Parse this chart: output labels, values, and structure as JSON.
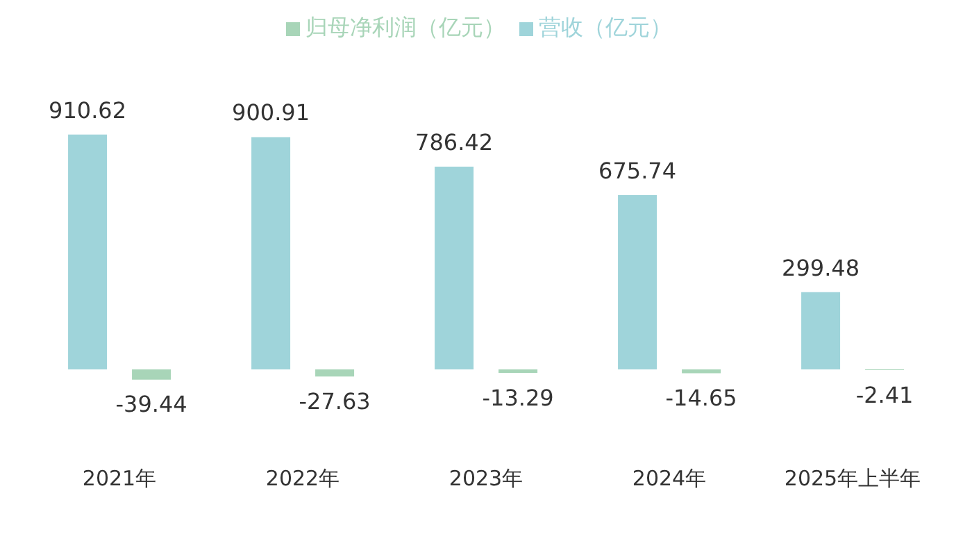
{
  "chart_data": {
    "type": "bar",
    "categories": [
      "2021年",
      "2022年",
      "2023年",
      "2024年",
      "2025年上半年"
    ],
    "series": [
      {
        "name": "营收（亿元）",
        "color": "#9fd4da",
        "values": [
          910.62,
          900.91,
          786.42,
          675.74,
          299.48
        ]
      },
      {
        "name": "归母净利润（亿元）",
        "color": "#a8d5b8",
        "values": [
          -39.44,
          -27.63,
          -13.29,
          -14.65,
          -2.41
        ]
      }
    ],
    "data_labels": true,
    "legend": "top",
    "grid": false
  }
}
